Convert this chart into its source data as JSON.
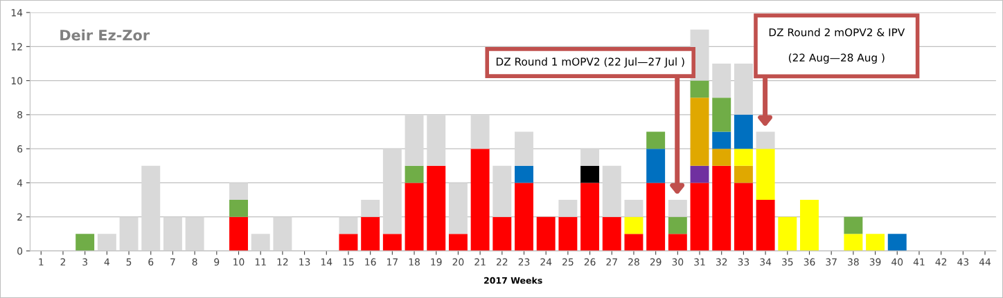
{
  "chart_data": {
    "type": "bar",
    "title": "Deir Ez-Zor",
    "xlabel": "2017 Weeks",
    "stacked": true,
    "grid": "y",
    "legend": false,
    "categories": [
      "1",
      "2",
      "3",
      "4",
      "5",
      "6",
      "7",
      "8",
      "9",
      "10",
      "11",
      "12",
      "13",
      "14",
      "15",
      "16",
      "17",
      "18",
      "19",
      "20",
      "21",
      "22",
      "23",
      "24",
      "25",
      "26",
      "27",
      "28",
      "29",
      "30",
      "31",
      "32",
      "33",
      "34",
      "35",
      "36",
      "37",
      "38",
      "39",
      "40",
      "41",
      "42",
      "43",
      "44"
    ],
    "ylim": [
      0,
      14
    ],
    "yticks": [
      0,
      2,
      4,
      6,
      8,
      10,
      12,
      14
    ],
    "series": [
      {
        "color": "#ff0000",
        "values": [
          0,
          0,
          0,
          0,
          0,
          0,
          0,
          0,
          0,
          2,
          0,
          0,
          0,
          0,
          1,
          2,
          1,
          4,
          5,
          1,
          6,
          2,
          4,
          2,
          2,
          4,
          2,
          1,
          4,
          1,
          4,
          5,
          4,
          3,
          0,
          0,
          0,
          0,
          0,
          0,
          0,
          0,
          0,
          0
        ]
      },
      {
        "color": "#7030a0",
        "values": [
          0,
          0,
          0,
          0,
          0,
          0,
          0,
          0,
          0,
          0,
          0,
          0,
          0,
          0,
          0,
          0,
          0,
          0,
          0,
          0,
          0,
          0,
          0,
          0,
          0,
          0,
          0,
          0,
          0,
          0,
          1,
          0,
          0,
          0,
          0,
          0,
          0,
          0,
          0,
          0,
          0,
          0,
          0,
          0
        ]
      },
      {
        "color": "#e0a800",
        "values": [
          0,
          0,
          0,
          0,
          0,
          0,
          0,
          0,
          0,
          0,
          0,
          0,
          0,
          0,
          0,
          0,
          0,
          0,
          0,
          0,
          0,
          0,
          0,
          0,
          0,
          0,
          0,
          0,
          0,
          0,
          4,
          1,
          1,
          0,
          0,
          0,
          0,
          0,
          0,
          0,
          0,
          0,
          0,
          0
        ]
      },
      {
        "color": "#ffff00",
        "values": [
          0,
          0,
          0,
          0,
          0,
          0,
          0,
          0,
          0,
          0,
          0,
          0,
          0,
          0,
          0,
          0,
          0,
          0,
          0,
          0,
          0,
          0,
          0,
          0,
          0,
          0,
          0,
          1,
          0,
          0,
          0,
          0,
          1,
          3,
          2,
          3,
          0,
          1,
          1,
          0,
          0,
          0,
          0,
          0
        ]
      },
      {
        "color": "#0070c0",
        "values": [
          0,
          0,
          0,
          0,
          0,
          0,
          0,
          0,
          0,
          0,
          0,
          0,
          0,
          0,
          0,
          0,
          0,
          0,
          0,
          0,
          0,
          0,
          1,
          0,
          0,
          0,
          0,
          0,
          2,
          0,
          0,
          1,
          2,
          0,
          0,
          0,
          0,
          0,
          0,
          1,
          0,
          0,
          0,
          0
        ]
      },
      {
        "color": "#000000",
        "values": [
          0,
          0,
          0,
          0,
          0,
          0,
          0,
          0,
          0,
          0,
          0,
          0,
          0,
          0,
          0,
          0,
          0,
          0,
          0,
          0,
          0,
          0,
          0,
          0,
          0,
          1,
          0,
          0,
          0,
          0,
          0,
          0,
          0,
          0,
          0,
          0,
          0,
          0,
          0,
          0,
          0,
          0,
          0,
          0
        ]
      },
      {
        "color": "#70ad47",
        "values": [
          0,
          0,
          1,
          0,
          0,
          0,
          0,
          0,
          0,
          1,
          0,
          0,
          0,
          0,
          0,
          0,
          0,
          1,
          0,
          0,
          0,
          0,
          0,
          0,
          0,
          0,
          0,
          0,
          1,
          1,
          1,
          2,
          0,
          0,
          0,
          0,
          0,
          1,
          0,
          0,
          0,
          0,
          0,
          0
        ]
      },
      {
        "color": "#d9d9d9",
        "values": [
          0,
          0,
          0,
          1,
          2,
          5,
          2,
          2,
          0,
          1,
          1,
          2,
          0,
          0,
          1,
          1,
          5,
          3,
          3,
          3,
          2,
          3,
          2,
          0,
          1,
          1,
          3,
          1,
          0,
          1,
          3,
          2,
          3,
          1,
          0,
          0,
          0,
          0,
          0,
          0,
          0,
          0,
          0,
          0
        ]
      }
    ],
    "annotations": [
      "DZ Round 1 mOPV2 (22 Jul—27 Jul )",
      "DZ Round 2 mOPV2 & IPV\n\n(22 Aug—28 Aug )"
    ]
  }
}
